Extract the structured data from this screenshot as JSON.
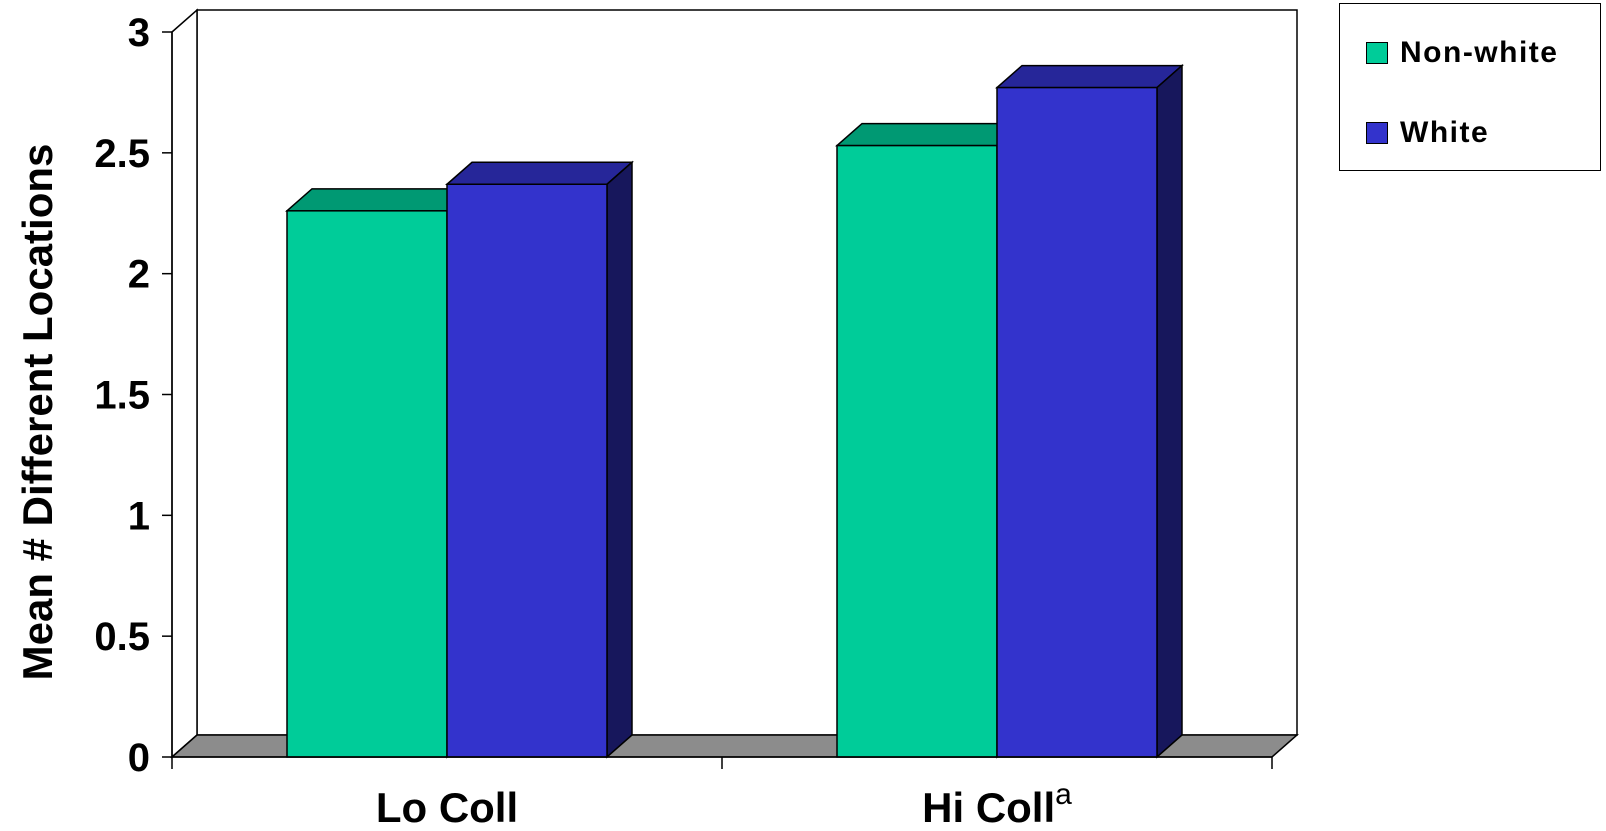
{
  "chart_data": {
    "type": "bar",
    "style": "3d-clustered",
    "title": "",
    "xlabel": "",
    "ylabel": "Mean # Different Locations",
    "ylim": [
      0,
      3
    ],
    "yticks": [
      "0",
      "0.5",
      "1",
      "1.5",
      "2",
      "2.5",
      "3"
    ],
    "categories": [
      "Lo Coll",
      "Hi Coll"
    ],
    "category_superscripts": [
      "",
      "a"
    ],
    "series": [
      {
        "name": "Non-white",
        "color": "#00CC99",
        "values": [
          2.26,
          2.53
        ]
      },
      {
        "name": "White",
        "color": "#3333CC",
        "values": [
          2.37,
          2.77
        ]
      }
    ],
    "legend_position": "top-right",
    "grid": false
  }
}
